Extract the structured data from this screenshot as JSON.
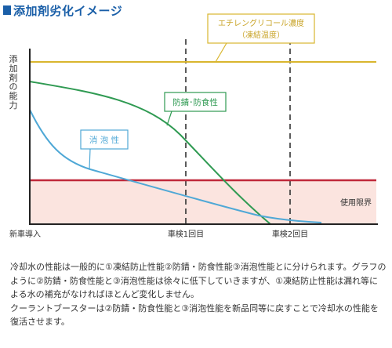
{
  "heading": "添加剤劣化イメージ",
  "diagram": {
    "y_axis_label": [
      "添",
      "加",
      "剤",
      "の",
      "能",
      "力"
    ],
    "x_labels": {
      "start": "新車導入",
      "inspection1": "車検1回目",
      "inspection2": "車検2回目"
    },
    "limit_label": "使用限界",
    "callout_antifreeze": [
      "エチレングリコール濃度",
      "（凍結温度）"
    ],
    "callout_rust": "防錆･防食性",
    "callout_foam": "消 泡 性",
    "colors": {
      "axis": "#222222",
      "antifreeze_line": "#d9b62e",
      "limit_line": "#c0283a",
      "limit_zone": "#fbe4df",
      "rust_line": "#2f9a52",
      "foam_line": "#4fa8d6",
      "dashed": "#333333"
    }
  },
  "description": {
    "para1": "冷却水の性能は一般的に①凍結防止性能②防錆・防食性能③消泡性能とに分けられます。グラフのように②防錆・防食性能と③消泡性能は徐々に低下していきますが、①凍結防止性能は漏れ等による水の補充がなければほとんど変化しません。",
    "para2": "クーラントブースターは②防錆・防食性能と③消泡性能を新品同等に戻すことで冷却水の性能を復活させます。"
  }
}
